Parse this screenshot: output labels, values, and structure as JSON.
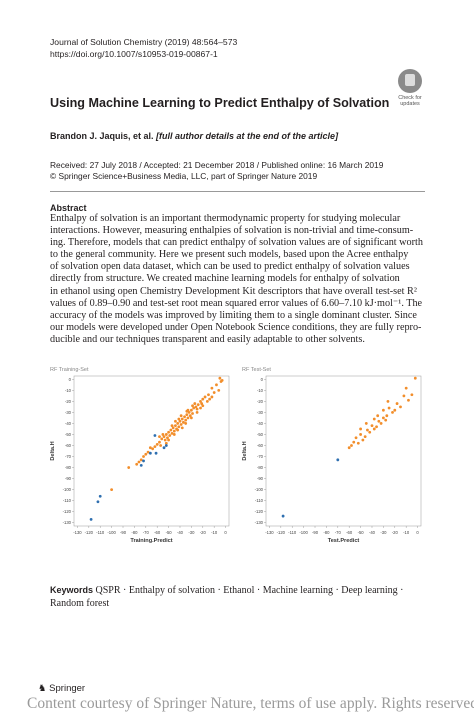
{
  "journal": {
    "line1": "Journal of Solution Chemistry (2019) 48:564–573",
    "line2": "https://doi.org/10.1007/s10953-019-00867-1"
  },
  "badge": {
    "line1": "Check for",
    "line2": "updates"
  },
  "title": "Using Machine Learning to Predict Enthalpy of Solvation",
  "authors": {
    "names": "Brandon J. Jaquis, et al.",
    "note": "[full author details at the end of the article]"
  },
  "dates": {
    "line1": "Received: 27 July 2018 / Accepted: 21 December 2018 / Published online: 16 March 2019",
    "line2": "© Springer Science+Business Media, LLC, part of Springer Nature 2019"
  },
  "abstract": {
    "heading": "Abstract",
    "lines": [
      "Enthalpy of solvation is an important thermodynamic property for studying molecular",
      "interactions. However, measuring enthalpies of solvation is non-trivial and time-consum-",
      "ing. Therefore, models that can predict enthalpy of solvation values are of significant worth",
      "to the general community. Here we present such models, based upon the Acree enthalpy",
      "of solvation open data dataset, which can be used to predict enthalpy of solvation values",
      "directly from structure. We created machine learning models for enthalpy of solvation",
      "in ethanol using open Chemistry Development Kit descriptors that have overall test-set R²",
      "values of 0.89–0.90 and test-set root mean squared error values of 6.60–7.10 kJ·mol⁻¹. The",
      "accuracy of the models was improved by limiting them to a single dominant cluster. Since",
      "our models were developed under Open Notebook Science conditions, they are fully repro-",
      "ducible and our techniques transparent and easily adaptable to other solvents."
    ]
  },
  "colors": {
    "orange": "#f28e2b",
    "blue": "#2e6fb0"
  },
  "chart_data": [
    {
      "type": "scatter",
      "title": "RF Training-Set",
      "xlabel": "Training.Predict",
      "ylabel": "Delta.H",
      "xlim": [
        -133,
        3
      ],
      "ylim": [
        -133,
        3
      ],
      "xticks": [
        -130,
        -120,
        -110,
        -100,
        -90,
        -80,
        -70,
        -60,
        -50,
        -40,
        -30,
        -20,
        -10,
        0
      ],
      "yticks": [
        0,
        -10,
        -20,
        -30,
        -40,
        -50,
        -60,
        -70,
        -80,
        -90,
        -100,
        -110,
        -120,
        -130
      ],
      "series": [
        {
          "color": "orange",
          "points": [
            [
              -5,
              1
            ],
            [
              -3,
              -1
            ],
            [
              -8,
              -5
            ],
            [
              -12,
              -8
            ],
            [
              -10,
              -12
            ],
            [
              -15,
              -14
            ],
            [
              -18,
              -16
            ],
            [
              -20,
              -18
            ],
            [
              -22,
              -20
            ],
            [
              -21,
              -22
            ],
            [
              -24,
              -23
            ],
            [
              -26,
              -25
            ],
            [
              -25,
              -27
            ],
            [
              -28,
              -26
            ],
            [
              -30,
              -28
            ],
            [
              -29,
              -31
            ],
            [
              -32,
              -30
            ],
            [
              -31,
              -33
            ],
            [
              -34,
              -32
            ],
            [
              -33,
              -35
            ],
            [
              -36,
              -34
            ],
            [
              -35,
              -37
            ],
            [
              -38,
              -36
            ],
            [
              -37,
              -39
            ],
            [
              -40,
              -38
            ],
            [
              -39,
              -41
            ],
            [
              -42,
              -40
            ],
            [
              -41,
              -43
            ],
            [
              -44,
              -42
            ],
            [
              -43,
              -45
            ],
            [
              -46,
              -44
            ],
            [
              -45,
              -47
            ],
            [
              -48,
              -46
            ],
            [
              -47,
              -49
            ],
            [
              -50,
              -48
            ],
            [
              -49,
              -51
            ],
            [
              -52,
              -50
            ],
            [
              -51,
              -53
            ],
            [
              -54,
              -52
            ],
            [
              -53,
              -55
            ],
            [
              -56,
              -54
            ],
            [
              -58,
              -57
            ],
            [
              -60,
              -59
            ],
            [
              -62,
              -61
            ],
            [
              -64,
              -63
            ],
            [
              -66,
              -62
            ],
            [
              -68,
              -66
            ],
            [
              -70,
              -68
            ],
            [
              -72,
              -70
            ],
            [
              -74,
              -73
            ],
            [
              -76,
              -75
            ],
            [
              -78,
              -77
            ],
            [
              -20,
              -24
            ],
            [
              -22,
              -26
            ],
            [
              -27,
              -22
            ],
            [
              -34,
              -29
            ],
            [
              -44,
              -38
            ],
            [
              -47,
              -42
            ],
            [
              -55,
              -50
            ],
            [
              -58,
              -52
            ],
            [
              -35,
              -40
            ],
            [
              -38,
              -44
            ],
            [
              -42,
              -46
            ],
            [
              -30,
              -35
            ],
            [
              -25,
              -30
            ],
            [
              -16,
              -20
            ],
            [
              -14,
              -18
            ],
            [
              -12,
              -16
            ],
            [
              -6,
              -10
            ],
            [
              -4,
              -2
            ],
            [
              -45,
              -50
            ],
            [
              -50,
              -55
            ],
            [
              -52,
              -58
            ],
            [
              -57,
              -60
            ],
            [
              -41,
              -36
            ],
            [
              -39,
              -33
            ],
            [
              -33,
              -28
            ],
            [
              -29,
              -24
            ],
            [
              -100,
              -100
            ],
            [
              -85,
              -80
            ]
          ]
        },
        {
          "color": "blue",
          "points": [
            [
              -62,
              -51
            ],
            [
              -52,
              -60
            ],
            [
              -54,
              -62
            ],
            [
              -61,
              -67
            ],
            [
              -72,
              -74
            ],
            [
              -74,
              -78
            ],
            [
              -110,
              -106
            ],
            [
              -112,
              -111
            ],
            [
              -118,
              -127
            ],
            [
              -66,
              -67
            ]
          ]
        }
      ]
    },
    {
      "type": "scatter",
      "title": "RF Test-Set",
      "xlabel": "Test.Predict",
      "ylabel": "Delta.H",
      "xlim": [
        -133,
        3
      ],
      "ylim": [
        -133,
        3
      ],
      "xticks": [
        -130,
        -120,
        -110,
        -100,
        -90,
        -80,
        -70,
        -60,
        -50,
        -40,
        -30,
        -20,
        -10,
        0
      ],
      "yticks": [
        0,
        -10,
        -20,
        -30,
        -40,
        -50,
        -60,
        -70,
        -80,
        -90,
        -100,
        -110,
        -120,
        -130
      ],
      "series": [
        {
          "color": "orange",
          "points": [
            [
              -2,
              1
            ],
            [
              -5,
              -14
            ],
            [
              -8,
              -19
            ],
            [
              -12,
              -15
            ],
            [
              -15,
              -25
            ],
            [
              -18,
              -22
            ],
            [
              -20,
              -28
            ],
            [
              -22,
              -30
            ],
            [
              -25,
              -26
            ],
            [
              -27,
              -33
            ],
            [
              -28,
              -37
            ],
            [
              -30,
              -35
            ],
            [
              -32,
              -40
            ],
            [
              -34,
              -38
            ],
            [
              -36,
              -43
            ],
            [
              -38,
              -45
            ],
            [
              -40,
              -42
            ],
            [
              -42,
              -48
            ],
            [
              -44,
              -46
            ],
            [
              -46,
              -52
            ],
            [
              -48,
              -55
            ],
            [
              -50,
              -50
            ],
            [
              -52,
              -58
            ],
            [
              -54,
              -53
            ],
            [
              -56,
              -57
            ],
            [
              -58,
              -60
            ],
            [
              -60,
              -62
            ],
            [
              -35,
              -33
            ],
            [
              -26,
              -20
            ],
            [
              -10,
              -8
            ],
            [
              -45,
              -40
            ],
            [
              -38,
              -36
            ],
            [
              -30,
              -28
            ],
            [
              -50,
              -45
            ]
          ]
        },
        {
          "color": "blue",
          "points": [
            [
              -70,
              -73
            ],
            [
              -118,
              -124
            ]
          ]
        }
      ]
    }
  ],
  "keywords": {
    "label": "Keywords",
    "text": "QSPR · Enthalpy of solvation · Ethanol · Machine learning · Deep learning ·",
    "text2": "Random forest"
  },
  "footer": {
    "publisher": "Springer",
    "courtesy": "Content courtesy of Springer Nature, terms of use apply. Rights reserved."
  }
}
